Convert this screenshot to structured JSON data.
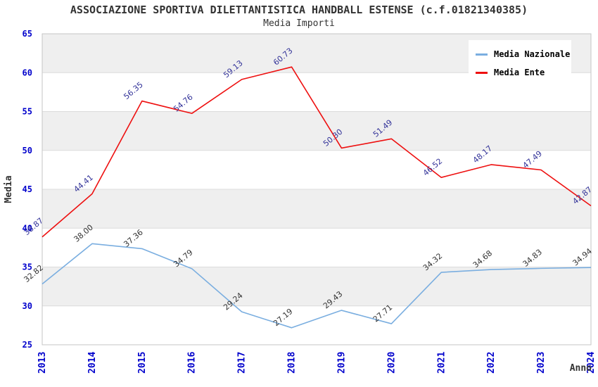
{
  "chart_data": {
    "type": "line",
    "title": "ASSOCIAZIONE SPORTIVA DILETTANTISTICA HANDBALL ESTENSE (c.f.01821340385)",
    "subtitle": "Media Importi",
    "xlabel": "Anno",
    "ylabel": "Media",
    "categories": [
      "2013",
      "2014",
      "2015",
      "2016",
      "2017",
      "2018",
      "2019",
      "2020",
      "2021",
      "2022",
      "2023",
      "2024"
    ],
    "series": [
      {
        "name": "Media Nazionale",
        "color": "#7AAEE0",
        "label_color": "#333333",
        "values": [
          32.82,
          38.0,
          37.36,
          34.79,
          29.24,
          27.19,
          29.43,
          27.71,
          34.32,
          34.68,
          34.83,
          34.94
        ]
      },
      {
        "name": "Media Ente",
        "color": "#EE1010",
        "label_color": "#333399",
        "values": [
          38.87,
          44.41,
          56.35,
          54.76,
          59.13,
          60.73,
          50.3,
          51.49,
          46.52,
          48.17,
          47.49,
          42.87
        ]
      }
    ],
    "ylim": [
      25,
      65
    ],
    "ytick_step": 5,
    "grid": true,
    "legend_position": "top-right",
    "colors": {
      "tick_label": "#0000CC",
      "band": "#EFEFEF",
      "grid": "#DCDCDC",
      "plot_border": "#C6C6C6",
      "title_text": "#333333",
      "axis_title_text": "#333333"
    }
  }
}
